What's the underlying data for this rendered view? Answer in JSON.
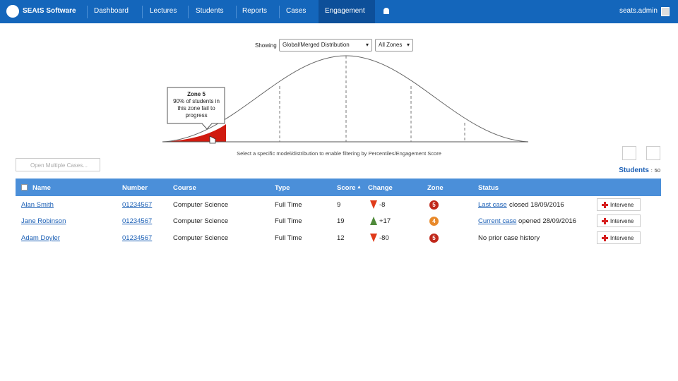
{
  "nav": {
    "brand": "SEAtS Software",
    "items": [
      "Dashboard",
      "Lectures",
      "Students",
      "Reports",
      "Cases",
      "Engagement"
    ],
    "user": "seats.admin"
  },
  "filters": {
    "label": "Showing",
    "distribution": "Global/Merged Distribution",
    "zones": "All Zones"
  },
  "tooltip": {
    "title": "Zone 5",
    "text": "90% of students in this zone fail to progress"
  },
  "hint": "Select a specific model/distribution to enable filtering by Percentiles/Engagement Score",
  "open_cases": "Open Multiple Cases...",
  "students": {
    "label": "Students",
    "count": 50
  },
  "table": {
    "columns": [
      "Name",
      "Number",
      "Course",
      "Type",
      "Score",
      "Change",
      "Zone",
      "Status"
    ],
    "rows": [
      {
        "name": "Alan Smith",
        "number": "01234567",
        "course": "Computer Science",
        "type": "Full Time",
        "score": 9,
        "change": "-8",
        "zone": 5,
        "status_link": "Last case",
        "status_text": "closed 18/09/2016",
        "action": "Intervene"
      },
      {
        "name": "Jane Robinson",
        "number": "01234567",
        "course": "Computer Science",
        "type": "Full Time",
        "score": 19,
        "change": "+17",
        "zone": 4,
        "status_link": "Current case",
        "status_text": "opened 28/09/2016",
        "action": "Intervene"
      },
      {
        "name": "Adam Doyler",
        "number": "01234567",
        "course": "Computer Science",
        "type": "Full Time",
        "score": 12,
        "change": "-80",
        "zone": 5,
        "status_text": "No prior case history",
        "action": "Intervene"
      }
    ]
  }
}
